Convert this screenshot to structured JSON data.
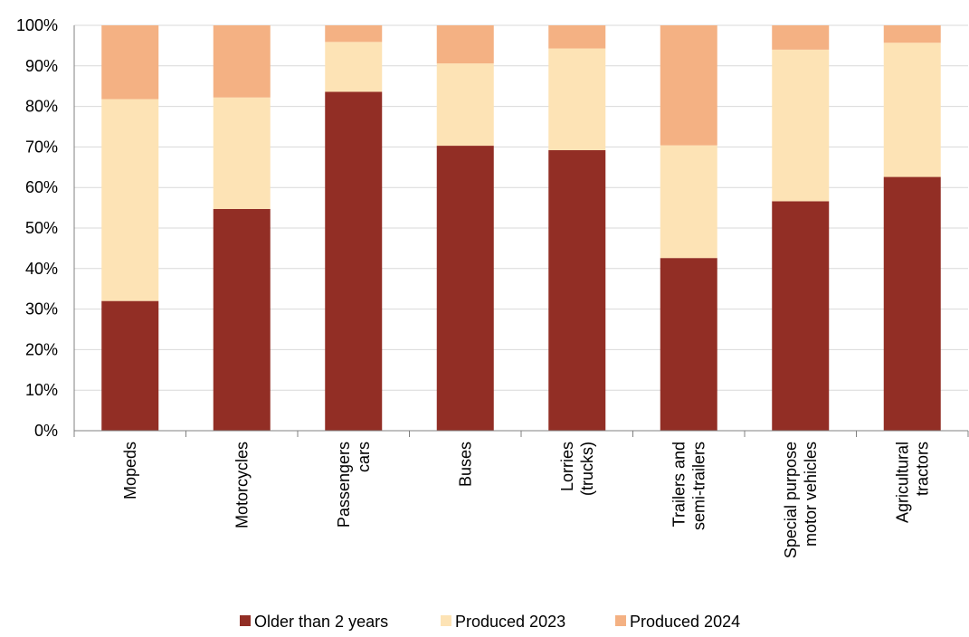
{
  "chart_data": {
    "type": "bar",
    "stacked": true,
    "percent": true,
    "title": "",
    "xlabel": "",
    "ylabel": "",
    "ylim": [
      0,
      100
    ],
    "yticks": [
      "0%",
      "10%",
      "20%",
      "30%",
      "40%",
      "50%",
      "60%",
      "70%",
      "80%",
      "90%",
      "100%"
    ],
    "grid": true,
    "legend_position": "bottom",
    "categories": [
      [
        "Mopeds"
      ],
      [
        "Motorcycles"
      ],
      [
        "Passengers",
        "cars"
      ],
      [
        "Buses"
      ],
      [
        "Lorries",
        "(trucks)"
      ],
      [
        "Trailers and",
        "semi-trailers"
      ],
      [
        "Special purpose",
        "motor vehicles"
      ],
      [
        "Agricultural",
        "tractors"
      ]
    ],
    "series": [
      {
        "name": "Older than 2 years",
        "color": "#922e25",
        "values": [
          32,
          54.7,
          83.6,
          70.3,
          69.2,
          42.6,
          56.6,
          62.6
        ]
      },
      {
        "name": "Produced 2023",
        "color": "#fde3b5",
        "values": [
          49.8,
          27.5,
          12.3,
          20.3,
          25.1,
          27.8,
          37.4,
          33.1
        ]
      },
      {
        "name": "Produced 2024",
        "color": "#f4b183",
        "values": [
          18.2,
          17.8,
          4.1,
          9.4,
          5.7,
          29.6,
          6.0,
          4.3
        ]
      }
    ]
  }
}
